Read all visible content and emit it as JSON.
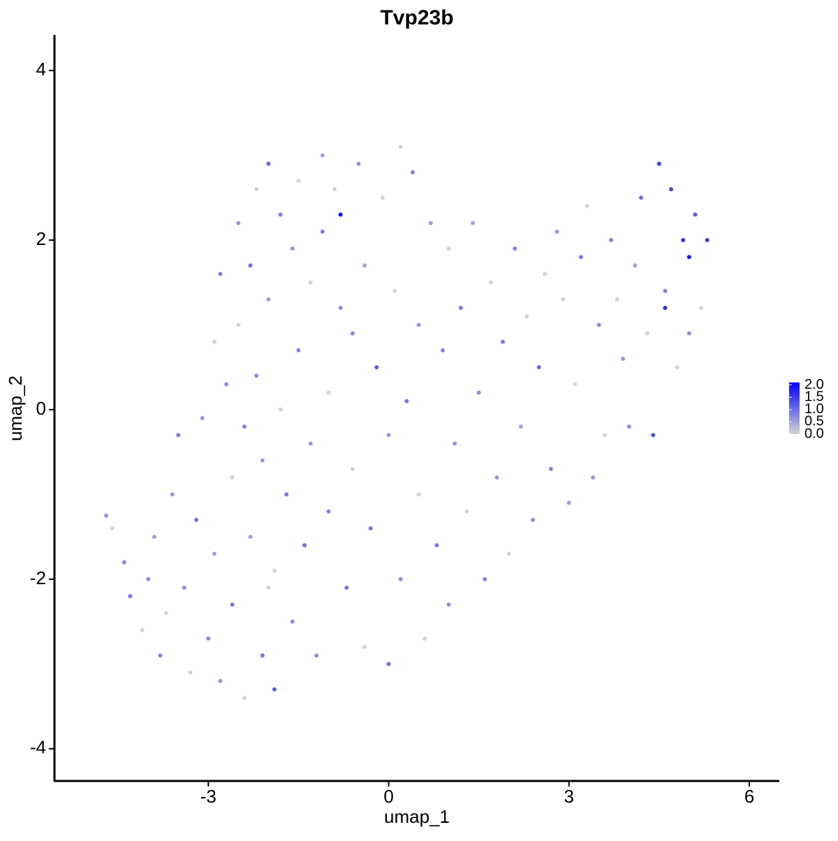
{
  "chart_data": {
    "type": "scatter",
    "title": "Tvp23b",
    "x_label": "umap_1",
    "y_label": "umap_2",
    "xlim": [
      -5.56,
      6.5
    ],
    "ylim": [
      -4.38,
      4.42
    ],
    "xticks": [
      -3,
      0,
      3,
      6
    ],
    "yticks": [
      -4,
      -2,
      0,
      2,
      4
    ],
    "grid": false,
    "legend_position": "right",
    "color_scale": {
      "low": "#d3d3d3",
      "high": "#0000ff",
      "limits": [
        0,
        2.1
      ],
      "ticks": [
        {
          "value": 0,
          "label": "0.0"
        },
        {
          "value": 0.5,
          "label": "0.5"
        },
        {
          "value": 1,
          "label": "1.0"
        },
        {
          "value": 1.5,
          "label": "1.5"
        },
        {
          "value": 2,
          "label": "2.0"
        }
      ]
    },
    "x": [
      -4.7,
      -4.6,
      -4.4,
      -4.3,
      -4.1,
      -4.0,
      -3.9,
      -3.8,
      -3.7,
      -3.6,
      -3.5,
      -3.4,
      -3.3,
      -3.2,
      -3.1,
      -3.0,
      -2.9,
      -2.9,
      -2.8,
      -2.8,
      -2.7,
      -2.6,
      -2.6,
      -2.5,
      -2.5,
      -2.4,
      -2.4,
      -2.3,
      -2.3,
      -2.2,
      -2.2,
      -2.1,
      -2.1,
      -2.0,
      -2.0,
      -1.9,
      -1.9,
      -1.8,
      -1.8,
      -1.7,
      -1.6,
      -1.6,
      -1.5,
      -1.5,
      -1.4,
      -1.3,
      -1.3,
      -1.2,
      -1.1,
      -1.1,
      -1.0,
      -1.0,
      -0.9,
      -0.8,
      -0.8,
      -0.7,
      -0.6,
      -0.6,
      -0.5,
      -0.4,
      -0.4,
      -0.3,
      -0.2,
      -0.1,
      0.0,
      0.0,
      0.1,
      0.2,
      0.2,
      0.3,
      0.4,
      0.5,
      0.5,
      0.6,
      0.7,
      0.8,
      0.9,
      1.0,
      1.0,
      1.1,
      1.2,
      1.3,
      1.4,
      1.5,
      1.6,
      1.7,
      1.8,
      1.9,
      2.0,
      2.1,
      2.2,
      2.3,
      2.4,
      2.5,
      2.6,
      2.7,
      2.8,
      2.9,
      3.0,
      3.1,
      3.2,
      3.3,
      3.4,
      3.5,
      3.6,
      3.7,
      3.8,
      3.9,
      4.0,
      4.1,
      4.2,
      4.3,
      4.4,
      4.5,
      4.6,
      4.7,
      4.8,
      4.9,
      5.0,
      5.0,
      5.1,
      5.2,
      5.3,
      4.6,
      -2.0
    ],
    "y": [
      -1.25,
      -1.4,
      -1.8,
      -2.2,
      -2.6,
      -2.0,
      -1.5,
      -2.9,
      -2.4,
      -1.0,
      -0.3,
      -2.1,
      -3.1,
      -1.3,
      -0.1,
      -2.7,
      0.8,
      -1.7,
      1.6,
      -3.2,
      0.3,
      -0.8,
      -2.3,
      2.2,
      1.0,
      -3.4,
      -0.2,
      1.7,
      -1.5,
      2.6,
      0.4,
      -2.9,
      -0.6,
      2.9,
      1.3,
      -1.9,
      -3.3,
      2.3,
      0.0,
      -1.0,
      1.9,
      -2.5,
      2.7,
      0.7,
      -1.6,
      1.5,
      -0.4,
      -2.9,
      3.0,
      2.1,
      0.2,
      -1.2,
      2.6,
      2.3,
      1.2,
      -2.1,
      -0.7,
      0.9,
      2.9,
      -2.8,
      1.7,
      -1.4,
      0.5,
      2.5,
      -3.0,
      -0.3,
      1.4,
      3.1,
      -2.0,
      0.1,
      2.8,
      -1.0,
      1.0,
      -2.7,
      2.2,
      -1.6,
      0.7,
      1.9,
      -2.3,
      -0.4,
      1.2,
      -1.2,
      2.2,
      0.2,
      -2.0,
      1.5,
      -0.8,
      0.8,
      -1.7,
      1.9,
      -0.2,
      1.1,
      -1.3,
      0.5,
      1.6,
      -0.7,
      2.1,
      1.3,
      -1.1,
      0.3,
      1.8,
      2.4,
      -0.8,
      1.0,
      -0.3,
      2.0,
      1.3,
      0.6,
      -0.2,
      1.7,
      2.5,
      0.9,
      -0.3,
      2.9,
      1.4,
      2.6,
      0.5,
      2.0,
      1.8,
      0.9,
      2.3,
      1.2,
      2.0,
      1.2,
      -2.1
    ],
    "values": [
      0.6,
      0,
      0.8,
      0.9,
      0,
      0.7,
      0.5,
      0.8,
      0,
      0.6,
      0.9,
      0.7,
      0,
      1.0,
      0.6,
      0.8,
      0,
      0.5,
      0.9,
      0.6,
      0.7,
      0,
      0.9,
      0.6,
      0,
      0,
      0.8,
      1.0,
      0.5,
      0,
      0.7,
      0.9,
      0.6,
      1.1,
      0.5,
      0,
      1.2,
      0.8,
      0,
      0.9,
      0.6,
      0.7,
      0,
      0.8,
      1.0,
      0,
      0.6,
      0.7,
      0.5,
      0.9,
      0,
      0.8,
      0,
      2.0,
      0.7,
      0.9,
      0,
      0.8,
      0.6,
      0,
      0.5,
      0.9,
      1.2,
      0,
      1.0,
      0.6,
      0,
      0,
      0.7,
      0.9,
      0.8,
      0,
      0.6,
      0,
      0.5,
      0.9,
      0.8,
      0,
      0.7,
      0.6,
      0.9,
      0,
      0.5,
      0.7,
      0.8,
      0,
      0.6,
      0.9,
      0,
      0.8,
      0.5,
      0,
      0.7,
      1.1,
      0,
      0.8,
      0.6,
      0,
      0.5,
      0,
      0.9,
      0,
      0.6,
      0.7,
      0,
      0.8,
      0,
      0.6,
      0.7,
      0.5,
      1.0,
      0,
      1.3,
      1.5,
      0.8,
      1.4,
      0,
      1.6,
      1.9,
      0.7,
      1.2,
      0,
      1.5,
      1.7,
      0
    ]
  }
}
